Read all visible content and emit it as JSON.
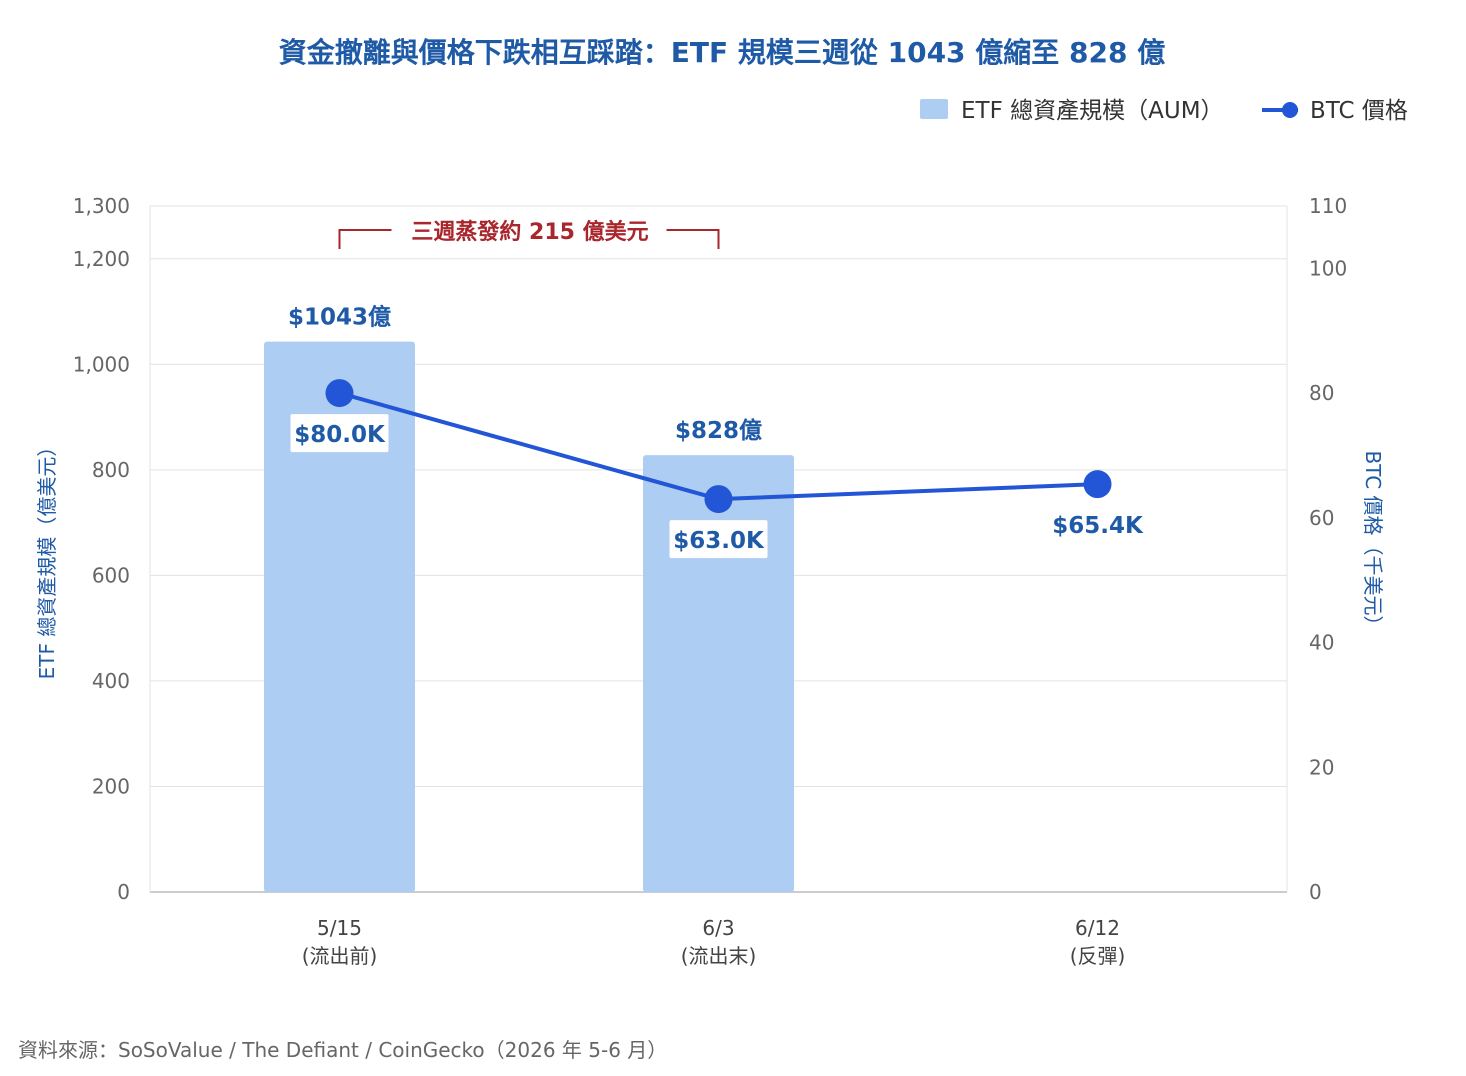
{
  "chart_data": {
    "type": "bar",
    "title": "資金撤離與價格下跌相互踩踏：ETF 規模三週從 1043 億縮至 828 億",
    "categories": [
      [
        "5/15",
        "(流出前)"
      ],
      [
        "6/3",
        "(流出末)"
      ],
      [
        "6/12",
        "(反彈)"
      ]
    ],
    "series": [
      {
        "name": "ETF 總資產規模（AUM）",
        "type": "bar",
        "axis": "left",
        "color": "#aecdf2",
        "values": [
          1043,
          828,
          null
        ],
        "labels": [
          "$1043億",
          "$828億",
          ""
        ]
      },
      {
        "name": "BTC 價格",
        "type": "line",
        "axis": "right",
        "color": "#2356d6",
        "values": [
          80.0,
          63.0,
          65.4
        ],
        "labels": [
          "$80.0K",
          "$63.0K",
          "$65.4K"
        ]
      }
    ],
    "y_left": {
      "label": "ETF 總資產規模（億美元）",
      "range": [
        0,
        1300
      ],
      "ticks": [
        0,
        200,
        400,
        600,
        800,
        1000,
        1200,
        1300
      ],
      "tick_labels": [
        "0",
        "200",
        "400",
        "600",
        "800",
        "1,000",
        "1,200",
        "1,300"
      ]
    },
    "y_right": {
      "label": "BTC 價格（千美元）",
      "range": [
        0,
        110
      ],
      "ticks": [
        0,
        20,
        40,
        60,
        80,
        100,
        110
      ],
      "tick_labels": [
        "0",
        "20",
        "40",
        "60",
        "80",
        "100",
        "110"
      ]
    },
    "annotation": {
      "text": "三週蒸發約 215 億美元",
      "from_category": 0,
      "to_category": 1
    },
    "legend_position": "top-right",
    "grid": true
  },
  "source_note": "資料來源：SoSoValue / The Defiant / CoinGecko（2026 年 5-6 月）"
}
